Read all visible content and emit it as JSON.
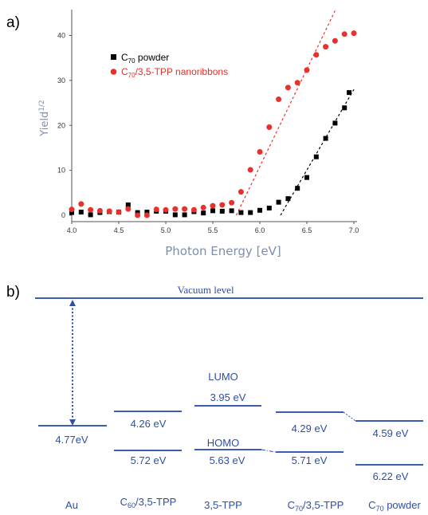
{
  "figure": {
    "panel_a_label": "a)",
    "panel_b_label": "b)"
  },
  "chart_data": [
    {
      "type": "scatter",
      "title": "",
      "xlabel": "Photon Energy [eV]",
      "ylabel_main": "Yield",
      "ylabel_sup": "1/2",
      "xlim": [
        4.0,
        7.0
      ],
      "ylim": [
        -1,
        46
      ],
      "xticks": [
        "4.0",
        "4.5",
        "5.0",
        "5.5",
        "6.0",
        "6.5",
        "7.0"
      ],
      "yticks": [
        "0",
        "10",
        "20",
        "30",
        "40"
      ],
      "grid": false,
      "legend_position": "upper-left",
      "series": [
        {
          "name_main": "C",
          "name_sub": "70",
          "name_rest": " powder",
          "color": "#000000",
          "marker": "square",
          "points": [
            [
              4.0,
              0.6
            ],
            [
              4.1,
              0.7
            ],
            [
              4.2,
              0.1
            ],
            [
              4.3,
              0.6
            ],
            [
              4.4,
              0.8
            ],
            [
              4.5,
              0.7
            ],
            [
              4.6,
              2.3
            ],
            [
              4.7,
              0.6
            ],
            [
              4.8,
              0.7
            ],
            [
              4.9,
              0.9
            ],
            [
              5.0,
              0.9
            ],
            [
              5.1,
              0.1
            ],
            [
              5.2,
              0.1
            ],
            [
              5.3,
              0.8
            ],
            [
              5.4,
              0.5
            ],
            [
              5.5,
              1.0
            ],
            [
              5.6,
              0.9
            ],
            [
              5.7,
              1.0
            ],
            [
              5.8,
              0.6
            ],
            [
              5.9,
              0.6
            ],
            [
              6.0,
              1.1
            ],
            [
              6.1,
              1.6
            ],
            [
              6.2,
              2.9
            ],
            [
              6.3,
              3.7
            ],
            [
              6.4,
              6.0
            ],
            [
              6.5,
              8.4
            ],
            [
              6.6,
              13.0
            ],
            [
              6.7,
              17.1
            ],
            [
              6.8,
              20.5
            ],
            [
              6.9,
              23.9
            ],
            [
              6.95,
              27.3
            ]
          ],
          "fit_line": {
            "x0": 6.22,
            "y0": 0,
            "x1": 7.0,
            "y1": 28
          }
        },
        {
          "name_main": "C",
          "name_sub": "70",
          "name_rest": "/3,5-TPP nanoribbons",
          "color": "#e8312c",
          "marker": "circle",
          "points": [
            [
              4.0,
              1.3
            ],
            [
              4.1,
              2.5
            ],
            [
              4.2,
              1.2
            ],
            [
              4.3,
              1.0
            ],
            [
              4.4,
              0.9
            ],
            [
              4.5,
              0.7
            ],
            [
              4.6,
              1.4
            ],
            [
              4.7,
              0.0
            ],
            [
              4.8,
              0.0
            ],
            [
              4.9,
              1.3
            ],
            [
              5.0,
              1.2
            ],
            [
              5.1,
              1.4
            ],
            [
              5.2,
              1.4
            ],
            [
              5.3,
              1.2
            ],
            [
              5.4,
              1.7
            ],
            [
              5.5,
              2.1
            ],
            [
              5.6,
              2.3
            ],
            [
              5.7,
              2.8
            ],
            [
              5.8,
              5.2
            ],
            [
              5.9,
              10.1
            ],
            [
              6.0,
              14.1
            ],
            [
              6.1,
              19.6
            ],
            [
              6.2,
              25.8
            ],
            [
              6.3,
              28.4
            ],
            [
              6.4,
              29.5
            ],
            [
              6.5,
              32.3
            ],
            [
              6.6,
              35.7
            ],
            [
              6.7,
              37.5
            ],
            [
              6.8,
              38.8
            ],
            [
              6.9,
              40.3
            ],
            [
              7.0,
              40.5
            ]
          ],
          "fit_line": {
            "x0": 5.75,
            "y0": 0,
            "x1": 6.8,
            "y1": 45.5
          }
        }
      ]
    },
    {
      "type": "energy-level-diagram",
      "vacuum_label": "Vacuum level",
      "homo_label": "HOMO",
      "lumo_label": "LUMO",
      "materials": [
        {
          "name": "Au",
          "name_sub": "",
          "name_rest": "",
          "levels": [
            4.77
          ],
          "labels": [
            "4.77eV"
          ]
        },
        {
          "name": "C",
          "name_sub": "60",
          "name_rest": "/3,5-TPP",
          "levels": [
            4.26,
            5.72
          ],
          "labels": [
            "4.26 eV",
            "5.72 eV"
          ]
        },
        {
          "name": "3,5-TPP",
          "name_sub": "",
          "name_rest": "",
          "levels": [
            3.95,
            5.63
          ],
          "labels": [
            "3.95 eV",
            "5.63 eV"
          ]
        },
        {
          "name": "C",
          "name_sub": "70",
          "name_rest": "/3,5-TPP",
          "levels": [
            4.29,
            5.71
          ],
          "labels": [
            "4.29 eV",
            "5.71 eV"
          ]
        },
        {
          "name": "C",
          "name_sub": "70",
          "name_rest": " powder",
          "levels": [
            4.59,
            6.22
          ],
          "labels": [
            "4.59 eV",
            "6.22 eV"
          ]
        }
      ]
    }
  ]
}
